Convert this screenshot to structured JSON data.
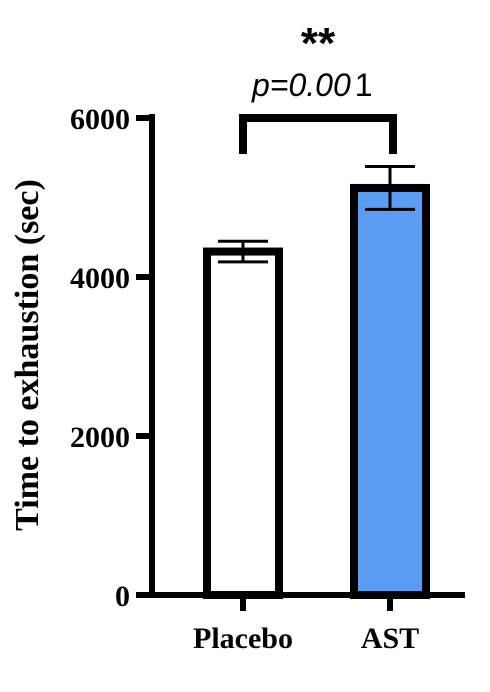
{
  "chart_data": {
    "type": "bar",
    "categories": [
      "Placebo",
      "AST"
    ],
    "values": [
      4320,
      5120
    ],
    "errors": [
      130,
      270
    ],
    "bar_colors": [
      "#ffffff",
      "#5b9cf4"
    ],
    "edge_color": "#000000",
    "ylabel": "Time to exhaustion (sec)",
    "xlabel": "",
    "ylim": [
      0,
      6000
    ],
    "yticks": [
      "0",
      "2000",
      "4000",
      "6000"
    ],
    "grid": false,
    "significance": {
      "stars": "**",
      "p_text": "p=0.00",
      "p_text_tail": "1"
    }
  }
}
